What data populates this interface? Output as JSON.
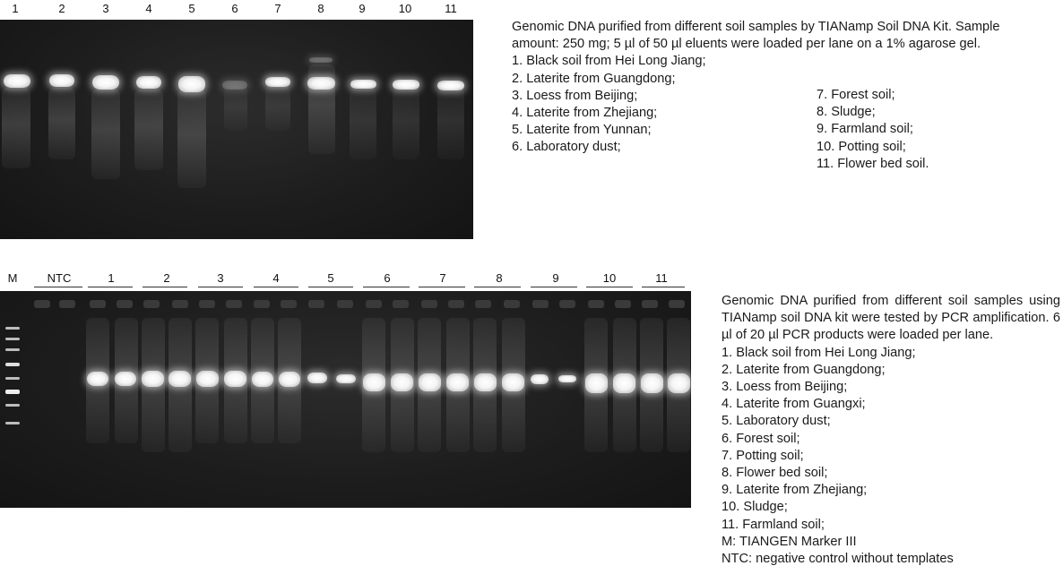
{
  "gel1": {
    "lanes": [
      "1",
      "2",
      "3",
      "4",
      "5",
      "6",
      "7",
      "8",
      "9",
      "10",
      "11"
    ],
    "caption": {
      "intro": "Genomic DNA purified from different soil samples by TIANamp Soil DNA Kit. Sample amount: 250 mg; 5 µl of 50 µl eluents were loaded per lane on a 1% agarose gel.",
      "items_left": [
        "1. Black soil from Hei Long Jiang;",
        "2. Laterite from Guangdong;",
        "3. Loess from Beijing;",
        "4. Laterite from Zhejiang;",
        "5. Laterite from Yunnan;",
        "6. Laboratory dust;"
      ],
      "items_right": [
        "7. Forest soil;",
        "8. Sludge;",
        "9. Farmland soil;",
        "10. Potting soil;",
        "11. Flower bed soil."
      ]
    }
  },
  "gel2": {
    "lanes": [
      "M",
      "NTC",
      "1",
      "2",
      "3",
      "4",
      "5",
      "6",
      "7",
      "8",
      "9",
      "10",
      "11"
    ],
    "caption": {
      "intro": "Genomic DNA purified from different soil samples using TIANamp soil DNA kit were tested by PCR amplification. 6 µl of 20 µl PCR products were loaded per lane.",
      "items": [
        "1. Black soil from Hei Long Jiang;",
        "2. Laterite from Guangdong;",
        "3. Loess from Beijing;",
        "4. Laterite from Guangxi;",
        "5. Laboratory dust;",
        "6. Forest soil;",
        "7. Potting soil;",
        "8. Flower bed soil;",
        "9. Laterite from Zhejiang;",
        "10. Sludge;",
        "11. Farmland soil;",
        "M: TIANGEN Marker III",
        "NTC: negative control without templates"
      ]
    }
  }
}
